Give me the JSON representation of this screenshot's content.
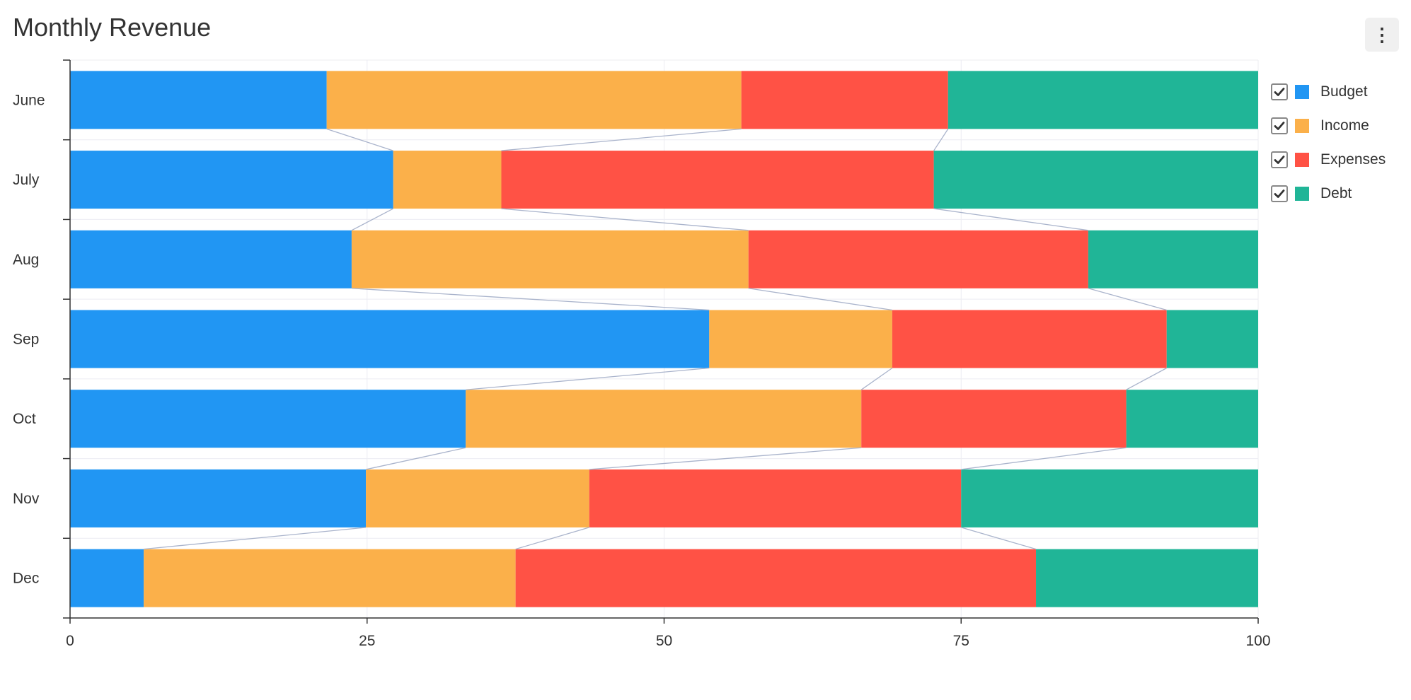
{
  "title": "Monthly Revenue",
  "menu": {
    "icon": "more-vertical-icon",
    "glyph": "⋮"
  },
  "legend": [
    {
      "label": "Budget",
      "color": "#2196F3",
      "checked": true
    },
    {
      "label": "Income",
      "color": "#FBB04A",
      "checked": true
    },
    {
      "label": "Expenses",
      "color": "#FF5245",
      "checked": true
    },
    {
      "label": "Debt",
      "color": "#20B597",
      "checked": true
    }
  ],
  "chart_data": {
    "type": "bar",
    "orientation": "horizontal",
    "stacked": true,
    "normalized_percent": true,
    "title": "Monthly Revenue",
    "categories": [
      "June",
      "July",
      "Aug",
      "Sep",
      "Oct",
      "Nov",
      "Dec"
    ],
    "series": [
      {
        "name": "Budget",
        "color": "#2196F3",
        "values": [
          21.6,
          27.2,
          23.7,
          53.8,
          33.3,
          24.9,
          6.2
        ]
      },
      {
        "name": "Income",
        "color": "#FBB04A",
        "values": [
          34.9,
          9.1,
          33.4,
          15.4,
          33.3,
          18.8,
          31.3
        ]
      },
      {
        "name": "Expenses",
        "color": "#FF5245",
        "values": [
          17.4,
          36.4,
          28.6,
          23.1,
          22.3,
          31.3,
          43.8
        ]
      },
      {
        "name": "Debt",
        "color": "#20B597",
        "values": [
          26.1,
          27.3,
          14.3,
          7.7,
          11.1,
          25.0,
          18.7
        ]
      }
    ],
    "xlim": [
      0,
      100
    ],
    "xticks": [
      "0",
      "25",
      "50",
      "75",
      "100"
    ],
    "grid": true,
    "connector_lines": true,
    "legend_position": "right"
  }
}
